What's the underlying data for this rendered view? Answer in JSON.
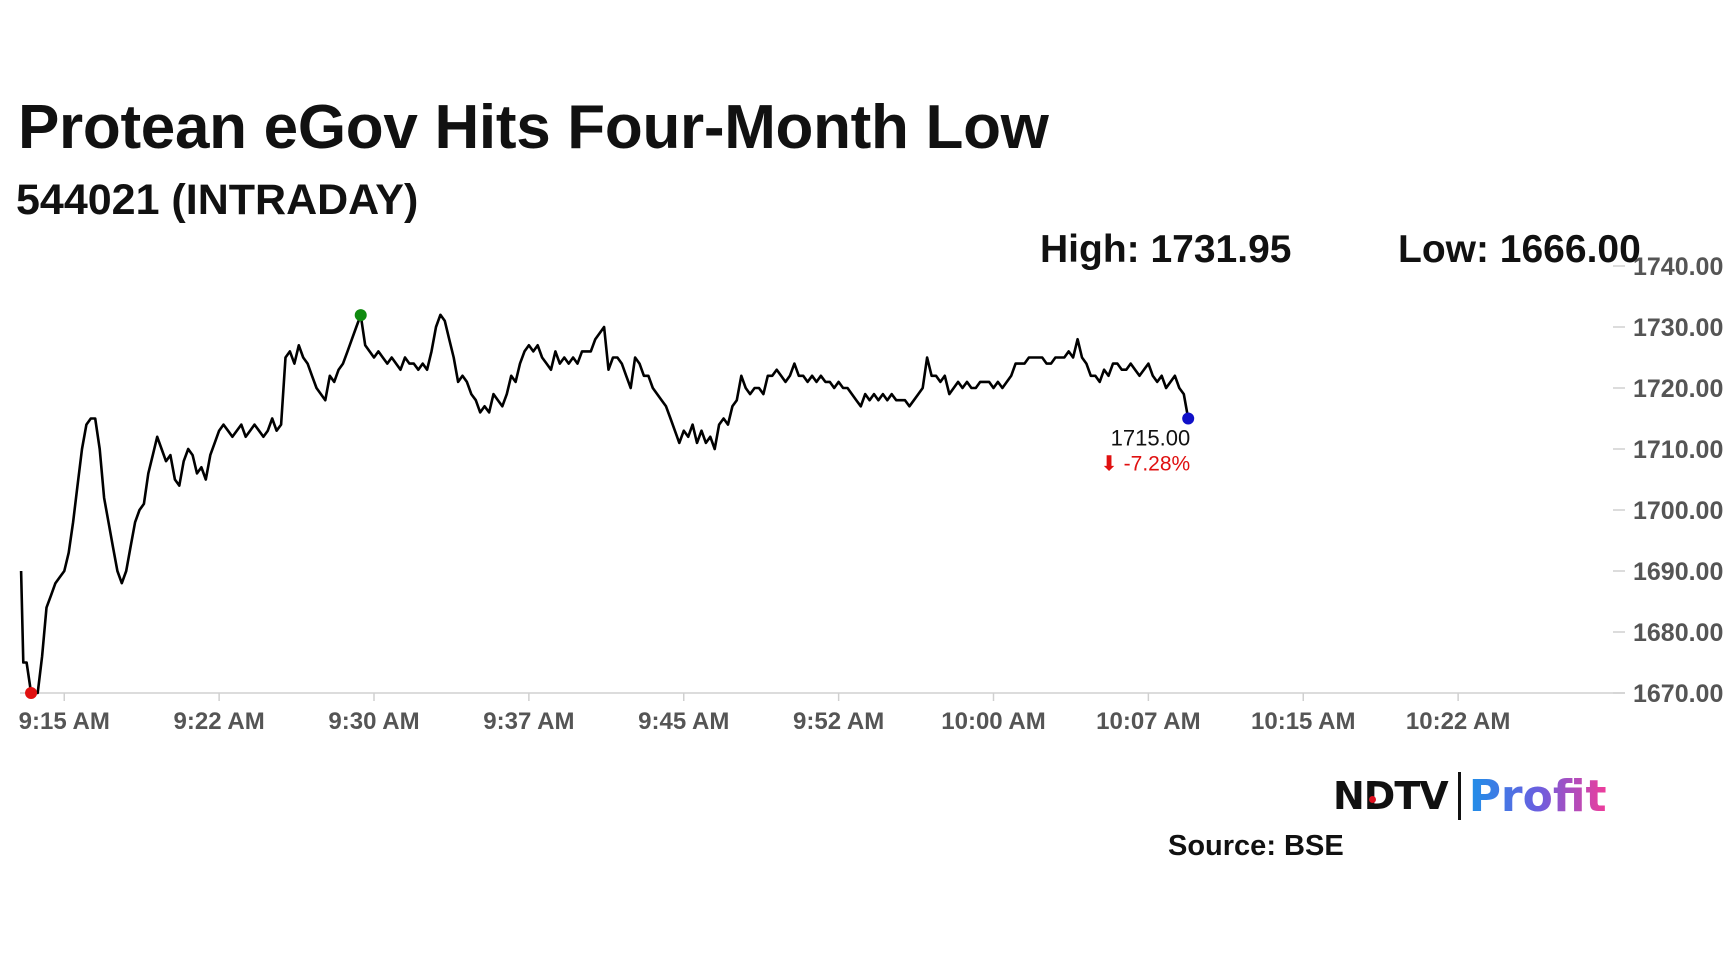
{
  "header": {
    "title": "Protean eGov Hits Four-Month Low",
    "subtitle": "544021 (INTRADAY)",
    "high_label": "High: 1731.95",
    "low_label": "Low: 1666.00"
  },
  "chart_data": {
    "type": "line",
    "x_unit": "minutes since 9:15 AM",
    "x_ticks": [
      {
        "t": 0,
        "label": "9:15 AM"
      },
      {
        "t": 7,
        "label": "9:22 AM"
      },
      {
        "t": 14,
        "label": "9:30 AM"
      },
      {
        "t": 21,
        "label": "9:37 AM"
      },
      {
        "t": 28,
        "label": "9:45 AM"
      },
      {
        "t": 35,
        "label": "9:52 AM"
      },
      {
        "t": 42,
        "label": "10:00 AM"
      },
      {
        "t": 49,
        "label": "10:07 AM"
      },
      {
        "t": 56,
        "label": "10:15 AM"
      },
      {
        "t": 63,
        "label": "10:22 AM"
      }
    ],
    "xlim": [
      -2,
      70
    ],
    "ylim": [
      1670,
      1740
    ],
    "y_ticks": [
      "1670.00",
      "1680.00",
      "1690.00",
      "1700.00",
      "1710.00",
      "1720.00",
      "1730.00",
      "1740.00"
    ],
    "y_tick_values": [
      1670,
      1680,
      1690,
      1700,
      1710,
      1720,
      1730,
      1740
    ],
    "grid": false,
    "points": [
      [
        -1.95,
        1690
      ],
      [
        -1.85,
        1675
      ],
      [
        -1.7,
        1675
      ],
      [
        -1.5,
        1670
      ],
      [
        -1.2,
        1670
      ],
      [
        -1.0,
        1676
      ],
      [
        -0.8,
        1684
      ],
      [
        -0.6,
        1686
      ],
      [
        -0.4,
        1688
      ],
      [
        -0.2,
        1689
      ],
      [
        0.0,
        1690
      ],
      [
        0.2,
        1693
      ],
      [
        0.4,
        1698
      ],
      [
        0.6,
        1704
      ],
      [
        0.8,
        1710
      ],
      [
        1.0,
        1714
      ],
      [
        1.2,
        1715
      ],
      [
        1.4,
        1715
      ],
      [
        1.6,
        1710
      ],
      [
        1.8,
        1702
      ],
      [
        2.0,
        1698
      ],
      [
        2.2,
        1694
      ],
      [
        2.4,
        1690
      ],
      [
        2.6,
        1688
      ],
      [
        2.8,
        1690
      ],
      [
        3.0,
        1694
      ],
      [
        3.2,
        1698
      ],
      [
        3.4,
        1700
      ],
      [
        3.6,
        1701
      ],
      [
        3.8,
        1706
      ],
      [
        4.0,
        1709
      ],
      [
        4.2,
        1712
      ],
      [
        4.4,
        1710
      ],
      [
        4.6,
        1708
      ],
      [
        4.8,
        1709
      ],
      [
        5.0,
        1705
      ],
      [
        5.2,
        1704
      ],
      [
        5.4,
        1708
      ],
      [
        5.6,
        1710
      ],
      [
        5.8,
        1709
      ],
      [
        6.0,
        1706
      ],
      [
        6.2,
        1707
      ],
      [
        6.4,
        1705
      ],
      [
        6.6,
        1709
      ],
      [
        6.8,
        1711
      ],
      [
        7.0,
        1713
      ],
      [
        7.2,
        1714
      ],
      [
        7.4,
        1713
      ],
      [
        7.6,
        1712
      ],
      [
        7.8,
        1713
      ],
      [
        8.0,
        1714
      ],
      [
        8.2,
        1712
      ],
      [
        8.4,
        1713
      ],
      [
        8.6,
        1714
      ],
      [
        8.8,
        1713
      ],
      [
        9.0,
        1712
      ],
      [
        9.2,
        1713
      ],
      [
        9.4,
        1715
      ],
      [
        9.6,
        1713
      ],
      [
        9.8,
        1714
      ],
      [
        10.0,
        1725
      ],
      [
        10.2,
        1726
      ],
      [
        10.4,
        1724
      ],
      [
        10.6,
        1727
      ],
      [
        10.8,
        1725
      ],
      [
        11.0,
        1724
      ],
      [
        11.2,
        1722
      ],
      [
        11.4,
        1720
      ],
      [
        11.6,
        1719
      ],
      [
        11.8,
        1718
      ],
      [
        12.0,
        1722
      ],
      [
        12.2,
        1721
      ],
      [
        12.4,
        1723
      ],
      [
        12.6,
        1724
      ],
      [
        12.8,
        1726
      ],
      [
        13.0,
        1728
      ],
      [
        13.2,
        1730
      ],
      [
        13.4,
        1731.95
      ],
      [
        13.6,
        1727
      ],
      [
        13.8,
        1726
      ],
      [
        14.0,
        1725
      ],
      [
        14.2,
        1726
      ],
      [
        14.4,
        1725
      ],
      [
        14.6,
        1724
      ],
      [
        14.8,
        1725
      ],
      [
        15.0,
        1724
      ],
      [
        15.2,
        1723
      ],
      [
        15.4,
        1725
      ],
      [
        15.6,
        1724
      ],
      [
        15.8,
        1724
      ],
      [
        16.0,
        1723
      ],
      [
        16.2,
        1724
      ],
      [
        16.4,
        1723
      ],
      [
        16.6,
        1726
      ],
      [
        16.8,
        1730
      ],
      [
        17.0,
        1732
      ],
      [
        17.2,
        1731
      ],
      [
        17.4,
        1728
      ],
      [
        17.6,
        1725
      ],
      [
        17.8,
        1721
      ],
      [
        18.0,
        1722
      ],
      [
        18.2,
        1721
      ],
      [
        18.4,
        1719
      ],
      [
        18.6,
        1718
      ],
      [
        18.8,
        1716
      ],
      [
        19.0,
        1717
      ],
      [
        19.2,
        1716
      ],
      [
        19.4,
        1719
      ],
      [
        19.6,
        1718
      ],
      [
        19.8,
        1717
      ],
      [
        20.0,
        1719
      ],
      [
        20.2,
        1722
      ],
      [
        20.4,
        1721
      ],
      [
        20.6,
        1724
      ],
      [
        20.8,
        1726
      ],
      [
        21.0,
        1727
      ],
      [
        21.2,
        1726
      ],
      [
        21.4,
        1727
      ],
      [
        21.6,
        1725
      ],
      [
        21.8,
        1724
      ],
      [
        22.0,
        1723
      ],
      [
        22.2,
        1726
      ],
      [
        22.4,
        1724
      ],
      [
        22.6,
        1725
      ],
      [
        22.8,
        1724
      ],
      [
        23.0,
        1725
      ],
      [
        23.2,
        1724
      ],
      [
        23.4,
        1726
      ],
      [
        23.6,
        1726
      ],
      [
        23.8,
        1726
      ],
      [
        24.0,
        1728
      ],
      [
        24.2,
        1729
      ],
      [
        24.4,
        1730
      ],
      [
        24.6,
        1723
      ],
      [
        24.8,
        1725
      ],
      [
        25.0,
        1725
      ],
      [
        25.2,
        1724
      ],
      [
        25.4,
        1722
      ],
      [
        25.6,
        1720
      ],
      [
        25.8,
        1725
      ],
      [
        26.0,
        1724
      ],
      [
        26.2,
        1722
      ],
      [
        26.4,
        1722
      ],
      [
        26.6,
        1720
      ],
      [
        26.8,
        1719
      ],
      [
        27.0,
        1718
      ],
      [
        27.2,
        1717
      ],
      [
        27.4,
        1715
      ],
      [
        27.6,
        1713
      ],
      [
        27.8,
        1711
      ],
      [
        28.0,
        1713
      ],
      [
        28.2,
        1712
      ],
      [
        28.4,
        1714
      ],
      [
        28.6,
        1711
      ],
      [
        28.8,
        1713
      ],
      [
        29.0,
        1711
      ],
      [
        29.2,
        1712
      ],
      [
        29.4,
        1710
      ],
      [
        29.6,
        1714
      ],
      [
        29.8,
        1715
      ],
      [
        30.0,
        1714
      ],
      [
        30.2,
        1717
      ],
      [
        30.4,
        1718
      ],
      [
        30.6,
        1722
      ],
      [
        30.8,
        1720
      ],
      [
        31.0,
        1719
      ],
      [
        31.2,
        1720
      ],
      [
        31.4,
        1720
      ],
      [
        31.6,
        1719
      ],
      [
        31.8,
        1722
      ],
      [
        32.0,
        1722
      ],
      [
        32.2,
        1723
      ],
      [
        32.4,
        1722
      ],
      [
        32.6,
        1721
      ],
      [
        32.8,
        1722
      ],
      [
        33.0,
        1724
      ],
      [
        33.2,
        1722
      ],
      [
        33.4,
        1722
      ],
      [
        33.6,
        1721
      ],
      [
        33.8,
        1722
      ],
      [
        34.0,
        1721
      ],
      [
        34.2,
        1722
      ],
      [
        34.4,
        1721
      ],
      [
        34.6,
        1721
      ],
      [
        34.8,
        1720
      ],
      [
        35.0,
        1721
      ],
      [
        35.2,
        1720
      ],
      [
        35.4,
        1720
      ],
      [
        35.6,
        1719
      ],
      [
        35.8,
        1718
      ],
      [
        36.0,
        1717
      ],
      [
        36.2,
        1719
      ],
      [
        36.4,
        1718
      ],
      [
        36.6,
        1719
      ],
      [
        36.8,
        1718
      ],
      [
        37.0,
        1719
      ],
      [
        37.2,
        1718
      ],
      [
        37.4,
        1719
      ],
      [
        37.6,
        1718
      ],
      [
        37.8,
        1718
      ],
      [
        38.0,
        1718
      ],
      [
        38.2,
        1717
      ],
      [
        38.4,
        1718
      ],
      [
        38.6,
        1719
      ],
      [
        38.8,
        1720
      ],
      [
        39.0,
        1725
      ],
      [
        39.2,
        1722
      ],
      [
        39.4,
        1722
      ],
      [
        39.6,
        1721
      ],
      [
        39.8,
        1722
      ],
      [
        40.0,
        1719
      ],
      [
        40.2,
        1720
      ],
      [
        40.4,
        1721
      ],
      [
        40.6,
        1720
      ],
      [
        40.8,
        1721
      ],
      [
        41.0,
        1720
      ],
      [
        41.2,
        1720
      ],
      [
        41.4,
        1721
      ],
      [
        41.6,
        1721
      ],
      [
        41.8,
        1721
      ],
      [
        42.0,
        1720
      ],
      [
        42.2,
        1721
      ],
      [
        42.4,
        1720
      ],
      [
        42.6,
        1721
      ],
      [
        42.8,
        1722
      ],
      [
        43.0,
        1724
      ],
      [
        43.2,
        1724
      ],
      [
        43.4,
        1724
      ],
      [
        43.6,
        1725
      ],
      [
        43.8,
        1725
      ],
      [
        44.0,
        1725
      ],
      [
        44.2,
        1725
      ],
      [
        44.4,
        1724
      ],
      [
        44.6,
        1724
      ],
      [
        44.8,
        1725
      ],
      [
        45.0,
        1725
      ],
      [
        45.2,
        1725
      ],
      [
        45.4,
        1726
      ],
      [
        45.6,
        1725
      ],
      [
        45.8,
        1728
      ],
      [
        46.0,
        1725
      ],
      [
        46.2,
        1724
      ],
      [
        46.4,
        1722
      ],
      [
        46.6,
        1722
      ],
      [
        46.8,
        1721
      ],
      [
        47.0,
        1723
      ],
      [
        47.2,
        1722
      ],
      [
        47.4,
        1724
      ],
      [
        47.6,
        1724
      ],
      [
        47.8,
        1723
      ],
      [
        48.0,
        1723
      ],
      [
        48.2,
        1724
      ],
      [
        48.4,
        1723
      ],
      [
        48.6,
        1722
      ],
      [
        48.8,
        1723
      ],
      [
        49.0,
        1724
      ],
      [
        49.2,
        1722
      ],
      [
        49.4,
        1721
      ],
      [
        49.6,
        1722
      ],
      [
        49.8,
        1720
      ],
      [
        50.0,
        1721
      ],
      [
        50.2,
        1722
      ],
      [
        50.4,
        1720
      ],
      [
        50.6,
        1719
      ],
      [
        50.8,
        1715
      ]
    ],
    "markers": {
      "low_t": -1.5,
      "high_t": 13.4,
      "last_t": 50.8
    },
    "last_price": "1715.00",
    "change": "⬇ -7.28%",
    "colors": {
      "line": "#000000",
      "low": "#e01010",
      "high": "#0f8a0f",
      "last": "#1010c8",
      "change": "#e01010",
      "axis": "#d0d0d0",
      "tick": "#555555"
    }
  },
  "footer": {
    "brand_left": "NDTV",
    "brand_right": "Profit",
    "source": "Source: BSE"
  }
}
